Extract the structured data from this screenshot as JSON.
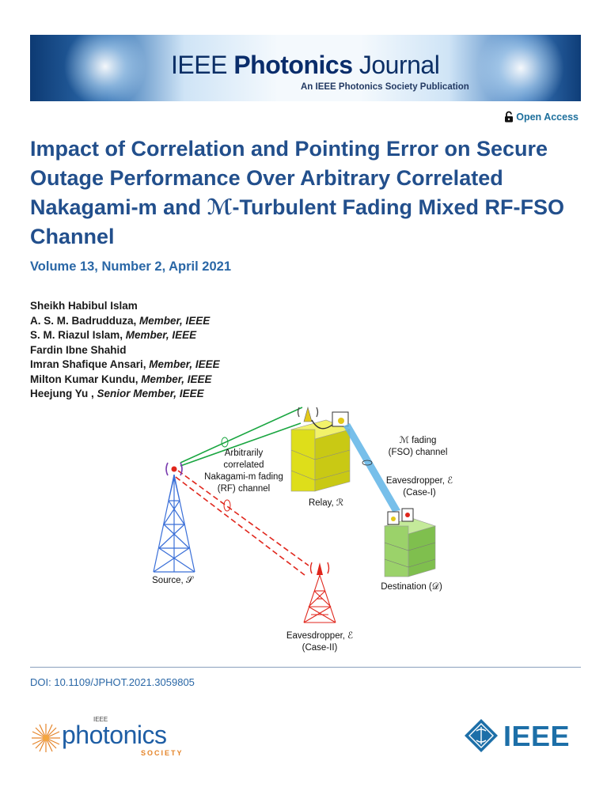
{
  "header": {
    "journal_name_regular": "IEEE ",
    "journal_name_bold": "Photonics",
    "journal_name_tail": " Journal",
    "journal_subtitle": "An IEEE Photonics Society Publication",
    "open_access": "Open Access"
  },
  "paper": {
    "title": "Impact of Correlation and Pointing Error on Secure Outage Performance Over Arbitrary Correlated Nakagami-m and ℳ-Turbulent Fading Mixed RF-FSO Channel",
    "volume": "Volume 13, Number 2, April 2021"
  },
  "authors": [
    {
      "name": "Sheikh Habibul Islam",
      "affiliation": ""
    },
    {
      "name": "A. S. M. Badrudduza, ",
      "affiliation": "Member, IEEE"
    },
    {
      "name": "S. M. Riazul Islam, ",
      "affiliation": "Member, IEEE"
    },
    {
      "name": "Fardin Ibne Shahid",
      "affiliation": ""
    },
    {
      "name": "Imran Shafique Ansari, ",
      "affiliation": "Member, IEEE"
    },
    {
      "name": "Milton Kumar Kundu, ",
      "affiliation": "Member, IEEE"
    },
    {
      "name": "Heejung Yu , ",
      "affiliation": "Senior Member, IEEE"
    }
  ],
  "figure": {
    "labels": {
      "arbitrary_1": "Arbitrarily",
      "arbitrary_2": "correlated",
      "arbitrary_3": "Nakagami-m fading",
      "arbitrary_4": "(RF) channel",
      "relay": "Relay, ℛ",
      "fso_1": "ℳ fading",
      "fso_2": "(FSO) channel",
      "eve1_1": "Eavesdropper, ℰ",
      "eve1_2": "(Case-I)",
      "source": "Source, 𝒮",
      "destination": "Destination (𝒟)",
      "eve2_1": "Eavesdropper, ℰ",
      "eve2_2": "(Case-II)"
    },
    "colors": {
      "source_tower": "#3a6fd8",
      "eve_tower": "#e0261c",
      "relay_block": "#e6e61a",
      "destination_block": "#9bd26a",
      "green_link": "#1aa641",
      "red_link": "#e0261c",
      "fso_beam": "#5fb4e6"
    }
  },
  "footer": {
    "doi": "DOI: 10.1109/JPHOT.2021.3059805",
    "society_ieee": "IEEE",
    "society_word": "photonics",
    "society_tag": "SOCIETY",
    "ieee_logo": "IEEE"
  }
}
